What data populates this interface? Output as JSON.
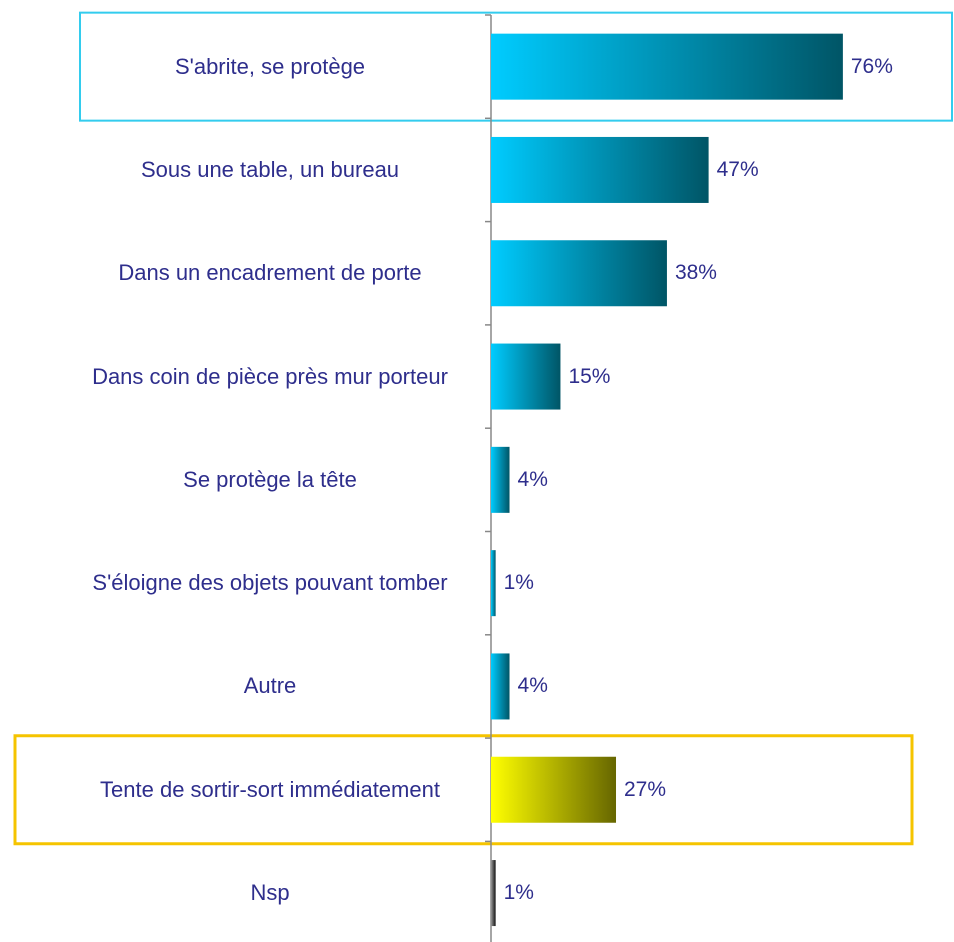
{
  "chart_data": {
    "type": "bar",
    "orientation": "horizontal",
    "categories": [
      "S'abrite, se protège",
      "Sous une table, un bureau",
      "Dans un encadrement de porte",
      "Dans coin de pièce près mur porteur",
      "Se protège la tête",
      "S'éloigne des objets pouvant tomber",
      "Autre",
      "Tente de sortir-sort immédiatement",
      "Nsp"
    ],
    "values": [
      76,
      47,
      38,
      15,
      4,
      1,
      4,
      27,
      1
    ],
    "value_labels": [
      "76%",
      "47%",
      "38%",
      "15%",
      "4%",
      "1%",
      "4%",
      "27%",
      "1%"
    ],
    "bar_gradients": [
      [
        "#00ccff",
        "#005566"
      ],
      [
        "#00ccff",
        "#005566"
      ],
      [
        "#00ccff",
        "#005566"
      ],
      [
        "#00ccff",
        "#005566"
      ],
      [
        "#00ccff",
        "#005566"
      ],
      [
        "#00ccff",
        "#005566"
      ],
      [
        "#00ccff",
        "#005566"
      ],
      [
        "#ffff00",
        "#666600"
      ],
      [
        "#999999",
        "#111111"
      ]
    ],
    "highlights": [
      {
        "index": 0,
        "color": "#33ccee"
      },
      {
        "index": 7,
        "color": "#f5c400"
      }
    ]
  }
}
